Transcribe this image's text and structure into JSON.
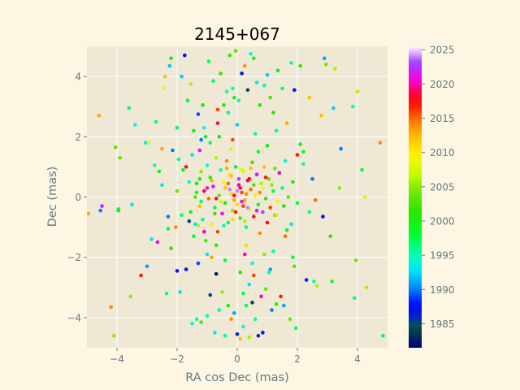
{
  "chart_data": {
    "type": "scatter",
    "title": "2145+067",
    "xlabel": "RA cos Dec (mas)",
    "ylabel": "Dec (mas)",
    "xlim": [
      -5,
      5
    ],
    "ylim": [
      -5,
      5
    ],
    "xticks": [
      -4,
      -2,
      0,
      2,
      4
    ],
    "yticks": [
      -4,
      -2,
      0,
      2,
      4
    ],
    "grid": true,
    "colorbar": {
      "label": "",
      "range": [
        1981.5,
        2025.5
      ],
      "ticks": [
        1985,
        1990,
        1995,
        2000,
        2005,
        2010,
        2015,
        2020,
        2025
      ],
      "colormap": "gist_ncar"
    },
    "points": [
      [
        -4.6,
        2.7,
        2013
      ],
      [
        -4.2,
        -3.65,
        2014
      ],
      [
        -4.1,
        -4.6,
        2005
      ],
      [
        -4.55,
        -0.45,
        1990
      ],
      [
        -4.5,
        -0.3,
        2022
      ],
      [
        -4.95,
        -0.55,
        2013
      ],
      [
        -3.95,
        -0.4,
        1997
      ],
      [
        -3.95,
        -0.45,
        2000
      ],
      [
        -4.05,
        1.65,
        2003
      ],
      [
        -3.9,
        1.3,
        2004
      ],
      [
        -3.55,
        -3.3,
        2005
      ],
      [
        -3.5,
        -0.25,
        1993
      ],
      [
        -3.4,
        2.4,
        1994
      ],
      [
        -3.2,
        -2.6,
        2017
      ],
      [
        -3.05,
        1.8,
        1993
      ],
      [
        -3.0,
        -2.3,
        1991
      ],
      [
        -2.95,
        1.8,
        2007
      ],
      [
        -2.85,
        -1.4,
        1993
      ],
      [
        -2.75,
        1.05,
        1995
      ],
      [
        -2.7,
        2.5,
        1996
      ],
      [
        -2.65,
        -1.5,
        2021
      ],
      [
        -2.6,
        0.85,
        2000
      ],
      [
        -2.5,
        1.6,
        2013
      ],
      [
        -2.45,
        3.6,
        2010
      ],
      [
        -2.4,
        4.0,
        2012
      ],
      [
        -2.35,
        -3.2,
        1996
      ],
      [
        -2.3,
        -0.65,
        1990
      ],
      [
        -2.25,
        4.35,
        1992
      ],
      [
        -2.2,
        4.6,
        2001
      ],
      [
        -2.15,
        1.55,
        1990
      ],
      [
        -2.05,
        -1.0,
        2014
      ],
      [
        -2.0,
        -2.45,
        1988
      ],
      [
        -1.95,
        1.25,
        1996
      ],
      [
        -1.9,
        -3.15,
        1993
      ],
      [
        -1.85,
        4.0,
        1992
      ],
      [
        -1.75,
        4.7,
        1987
      ],
      [
        -1.7,
        -2.4,
        1988
      ],
      [
        -1.65,
        3.2,
        1999
      ],
      [
        -1.6,
        -0.8,
        1985
      ],
      [
        -1.55,
        3.75,
        2006
      ],
      [
        -1.5,
        -4.2,
        1994
      ],
      [
        -1.45,
        2.2,
        2000
      ],
      [
        -1.4,
        -0.9,
        1993
      ],
      [
        -1.35,
        -4.05,
        1995
      ],
      [
        -1.3,
        2.75,
        1989
      ],
      [
        -1.25,
        1.55,
        2022
      ],
      [
        -1.2,
        -4.15,
        2003
      ],
      [
        -1.15,
        3.05,
        2000
      ],
      [
        -1.1,
        -1.15,
        2020
      ],
      [
        -1.05,
        2.0,
        1998
      ],
      [
        -1.0,
        -3.95,
        1995
      ],
      [
        -0.95,
        4.5,
        1997
      ],
      [
        -0.9,
        -3.25,
        1985
      ],
      [
        -0.85,
        -2.0,
        2013
      ],
      [
        -0.8,
        3.85,
        1997
      ],
      [
        -0.75,
        -4.5,
        1993
      ],
      [
        -0.7,
        -2.55,
        1983
      ],
      [
        -0.65,
        2.9,
        2016
      ],
      [
        -0.6,
        -3.75,
        1996
      ],
      [
        -0.55,
        4.1,
        2002
      ],
      [
        -0.5,
        -3.15,
        2005
      ],
      [
        -0.45,
        3.05,
        2000
      ],
      [
        -0.4,
        -4.6,
        1996
      ],
      [
        -0.35,
        3.5,
        1995
      ],
      [
        -0.3,
        -3.6,
        2000
      ],
      [
        -0.25,
        4.7,
        2002
      ],
      [
        -0.2,
        -4.05,
        2014
      ],
      [
        -0.15,
        3.6,
        1994
      ],
      [
        -0.1,
        -3.85,
        1991
      ],
      [
        -0.05,
        4.85,
        2003
      ],
      [
        0.0,
        -4.55,
        1986
      ],
      [
        0.05,
        3.2,
        1995
      ],
      [
        0.1,
        -4.7,
        2012
      ],
      [
        0.15,
        4.1,
        1987
      ],
      [
        0.2,
        -4.3,
        1994
      ],
      [
        0.25,
        4.35,
        2014
      ],
      [
        0.3,
        -3.6,
        1997
      ],
      [
        0.35,
        3.55,
        1985
      ],
      [
        0.4,
        -4.65,
        2006
      ],
      [
        0.45,
        4.75,
        1995
      ],
      [
        0.5,
        -3.5,
        1984
      ],
      [
        0.55,
        4.6,
        2000
      ],
      [
        0.6,
        -4.05,
        1996
      ],
      [
        0.65,
        3.8,
        1993
      ],
      [
        0.7,
        -4.6,
        1986
      ],
      [
        0.75,
        3.05,
        2001
      ],
      [
        0.8,
        -3.3,
        2020
      ],
      [
        0.85,
        -4.5,
        1988
      ],
      [
        0.9,
        3.7,
        1995
      ],
      [
        0.95,
        -3.05,
        2004
      ],
      [
        1.0,
        4.05,
        1992
      ],
      [
        1.05,
        -2.5,
        1995
      ],
      [
        1.1,
        3.3,
        2003
      ],
      [
        1.15,
        -3.75,
        1990
      ],
      [
        1.2,
        2.8,
        2001
      ],
      [
        1.3,
        -3.55,
        2002
      ],
      [
        1.35,
        4.2,
        2000
      ],
      [
        1.45,
        -3.3,
        2017
      ],
      [
        1.5,
        3.6,
        1997
      ],
      [
        1.55,
        -3.6,
        1991
      ],
      [
        1.65,
        2.45,
        2013
      ],
      [
        1.75,
        -4.05,
        2004
      ],
      [
        1.8,
        4.45,
        1995
      ],
      [
        1.85,
        -2.0,
        1997
      ],
      [
        1.9,
        3.55,
        1988
      ],
      [
        1.95,
        -4.35,
        1997
      ],
      [
        2.0,
        1.4,
        2017
      ],
      [
        2.1,
        4.35,
        2002
      ],
      [
        2.2,
        1.5,
        1999
      ],
      [
        2.3,
        -2.75,
        1988
      ],
      [
        2.4,
        3.3,
        2012
      ],
      [
        2.5,
        0.6,
        1990
      ],
      [
        2.55,
        -2.8,
        1995
      ],
      [
        2.6,
        -0.1,
        2015
      ],
      [
        2.65,
        -2.95,
        2006
      ],
      [
        2.8,
        2.7,
        2012
      ],
      [
        2.85,
        -0.65,
        1987
      ],
      [
        2.9,
        4.6,
        1991
      ],
      [
        2.95,
        4.4,
        2004
      ],
      [
        3.1,
        -1.3,
        2002
      ],
      [
        3.15,
        -2.8,
        1998
      ],
      [
        3.2,
        2.95,
        1992
      ],
      [
        3.25,
        4.25,
        2006
      ],
      [
        3.4,
        0.3,
        2005
      ],
      [
        3.45,
        1.6,
        1990
      ],
      [
        3.85,
        3.0,
        1994
      ],
      [
        3.9,
        -3.35,
        1996
      ],
      [
        3.95,
        -2.1,
        2004
      ],
      [
        4.0,
        3.5,
        2006
      ],
      [
        4.15,
        0.9,
        1998
      ],
      [
        4.25,
        0.0,
        2008
      ],
      [
        4.3,
        -3.0,
        2006
      ],
      [
        4.75,
        1.8,
        2014
      ],
      [
        4.85,
        -4.6,
        1998
      ],
      [
        -3.6,
        2.95,
        1996
      ],
      [
        -1.35,
        0.45,
        2001
      ],
      [
        -1.25,
        -0.3,
        2012
      ],
      [
        -1.2,
        0.85,
        2005
      ],
      [
        -1.15,
        -0.75,
        1996
      ],
      [
        -1.1,
        0.2,
        2019
      ],
      [
        -1.05,
        -1.45,
        2003
      ],
      [
        -1.0,
        1.05,
        1994
      ],
      [
        -0.95,
        -0.05,
        2015
      ],
      [
        -0.9,
        0.65,
        2000
      ],
      [
        -0.85,
        -0.9,
        2010
      ],
      [
        -0.8,
        0.35,
        2022
      ],
      [
        -0.75,
        -0.35,
        1998
      ],
      [
        -0.7,
        1.3,
        2006
      ],
      [
        -0.65,
        -1.15,
        2016
      ],
      [
        -0.6,
        0.05,
        2004
      ],
      [
        -0.55,
        0.9,
        1995
      ],
      [
        -0.5,
        -0.55,
        2021
      ],
      [
        -0.45,
        0.5,
        2009
      ],
      [
        -0.4,
        -0.2,
        2001
      ],
      [
        -0.35,
        1.2,
        2014
      ],
      [
        -0.3,
        -0.85,
        1997
      ],
      [
        -0.25,
        0.25,
        2024
      ],
      [
        -0.2,
        0.7,
        2012
      ],
      [
        -0.15,
        -0.45,
        2005
      ],
      [
        -0.1,
        0.05,
        2018
      ],
      [
        -0.05,
        1.0,
        1999
      ],
      [
        0.0,
        -0.25,
        2011
      ],
      [
        0.05,
        0.4,
        2020
      ],
      [
        0.1,
        -0.7,
        2003
      ],
      [
        0.15,
        0.15,
        2016
      ],
      [
        0.2,
        0.85,
        2007
      ],
      [
        0.25,
        -0.1,
        2013
      ],
      [
        0.3,
        -1.0,
        1996
      ],
      [
        0.35,
        0.55,
        2019
      ],
      [
        0.4,
        -0.4,
        2008
      ],
      [
        0.45,
        0.25,
        2015
      ],
      [
        0.5,
        1.15,
        2002
      ],
      [
        0.55,
        -0.65,
        2017
      ],
      [
        0.6,
        0.05,
        2010
      ],
      [
        0.65,
        0.75,
        2021
      ],
      [
        0.7,
        -0.25,
        1999
      ],
      [
        0.75,
        -1.2,
        2014
      ],
      [
        0.8,
        0.45,
        2006
      ],
      [
        0.85,
        -0.5,
        2023
      ],
      [
        0.9,
        1.0,
        2012
      ],
      [
        0.95,
        -0.05,
        2001
      ],
      [
        1.0,
        -0.85,
        2018
      ],
      [
        1.05,
        0.6,
        2004
      ],
      [
        1.1,
        -0.35,
        2016
      ],
      [
        1.2,
        0.2,
        1997
      ],
      [
        1.3,
        -0.6,
        2011
      ],
      [
        1.4,
        0.8,
        2020
      ],
      [
        -0.3,
        0.45,
        2015
      ],
      [
        -0.1,
        -0.1,
        2013
      ],
      [
        0.1,
        0.3,
        2019
      ],
      [
        0.2,
        -0.3,
        2016
      ],
      [
        -0.2,
        0.1,
        2011
      ],
      [
        0.05,
        0.6,
        2023
      ],
      [
        0.3,
        0.1,
        2014
      ],
      [
        -0.05,
        -0.5,
        2017
      ],
      [
        0.15,
        -0.15,
        2021
      ],
      [
        -0.4,
        0.3,
        2012
      ],
      [
        0.4,
        0.6,
        2018
      ],
      [
        0.0,
        0.2,
        2024
      ],
      [
        -1.6,
        0.5,
        1995
      ],
      [
        -1.55,
        -0.5,
        2000
      ],
      [
        -1.5,
        1.4,
        1993
      ],
      [
        -1.45,
        -1.3,
        1998
      ],
      [
        -1.4,
        0.0,
        2003
      ],
      [
        1.5,
        0.3,
        1996
      ],
      [
        1.55,
        -0.3,
        2001
      ],
      [
        1.6,
        1.2,
        1994
      ],
      [
        1.65,
        -1.1,
        1999
      ],
      [
        1.7,
        0.0,
        2004
      ],
      [
        -0.6,
        2.0,
        2001
      ],
      [
        0.6,
        2.1,
        1996
      ],
      [
        -0.4,
        -2.1,
        1998
      ],
      [
        0.5,
        -2.2,
        1994
      ],
      [
        0.0,
        2.4,
        1992
      ],
      [
        0.1,
        -2.5,
        2000
      ],
      [
        -0.9,
        1.8,
        1997
      ],
      [
        0.9,
        -1.9,
        2005
      ],
      [
        -1.0,
        -1.9,
        1993
      ],
      [
        1.0,
        1.7,
        2000
      ],
      [
        -0.2,
        1.6,
        2008
      ],
      [
        0.3,
        -1.6,
        2011
      ],
      [
        -0.7,
        -1.6,
        2002
      ],
      [
        0.7,
        1.5,
        1998
      ],
      [
        -1.2,
        1.9,
        1990
      ],
      [
        1.2,
        -1.8,
        1995
      ],
      [
        -0.3,
        2.8,
        1996
      ],
      [
        0.4,
        -2.9,
        1993
      ],
      [
        -0.1,
        3.3,
        1999
      ],
      [
        0.2,
        -3.2,
        1997
      ],
      [
        -0.65,
        2.45,
        2019
      ],
      [
        0.55,
        -2.6,
        2016
      ],
      [
        -1.1,
        2.3,
        1994
      ],
      [
        1.1,
        -2.4,
        1991
      ],
      [
        -1.3,
        -2.2,
        1989
      ],
      [
        1.3,
        2.2,
        1996
      ],
      [
        -1.8,
        0.9,
        1999
      ],
      [
        1.8,
        -0.9,
        1993
      ],
      [
        -1.85,
        -0.6,
        1996
      ],
      [
        1.85,
        0.5,
        2001
      ],
      [
        -2.0,
        0.2,
        2004
      ],
      [
        2.0,
        -0.2,
        1998
      ],
      [
        -0.85,
        0.55,
        2013
      ],
      [
        0.85,
        0.3,
        2009
      ],
      [
        -0.55,
        -0.15,
        2007
      ],
      [
        0.55,
        0.4,
        2003
      ],
      [
        -0.25,
        0.75,
        2010
      ],
      [
        0.25,
        -0.8,
        2006
      ],
      [
        -0.75,
        -0.55,
        2002
      ],
      [
        0.75,
        0.15,
        2014
      ],
      [
        -0.45,
        -0.95,
        1995
      ],
      [
        0.45,
        0.95,
        2012
      ],
      [
        -1.25,
        0.6,
        2000
      ],
      [
        1.25,
        -0.6,
        2003
      ],
      [
        -1.2,
        -0.15,
        1997
      ],
      [
        1.15,
        0.4,
        2005
      ],
      [
        -2.3,
        -1.05,
        1998
      ],
      [
        2.2,
        1.1,
        1995
      ],
      [
        -2.5,
        0.4,
        1993
      ],
      [
        2.4,
        -0.5,
        1996
      ],
      [
        -2.2,
        -1.7,
        2001
      ],
      [
        2.1,
        1.75,
        1999
      ],
      [
        -2.0,
        2.3,
        1997
      ],
      [
        1.9,
        -2.3,
        2003
      ],
      [
        -1.7,
        1.0,
        2018
      ],
      [
        1.6,
        -1.3,
        2015
      ],
      [
        -0.15,
        1.9,
        2016
      ],
      [
        0.25,
        -1.9,
        2020
      ],
      [
        -1.0,
        0.3,
        2021
      ],
      [
        0.95,
        0.65,
        2017
      ],
      [
        -0.7,
        -0.05,
        2019
      ],
      [
        0.65,
        -0.45,
        2022
      ],
      [
        -0.35,
        0.95,
        2013
      ],
      [
        0.35,
        -0.35,
        2024
      ],
      [
        -0.15,
        -0.75,
        2011
      ],
      [
        0.15,
        0.9,
        2008
      ],
      [
        1.25,
        0.95,
        2004
      ],
      [
        -1.3,
        -0.95,
        2006
      ],
      [
        1.35,
        -0.15,
        2010
      ],
      [
        -1.35,
        0.15,
        1999
      ]
    ]
  }
}
